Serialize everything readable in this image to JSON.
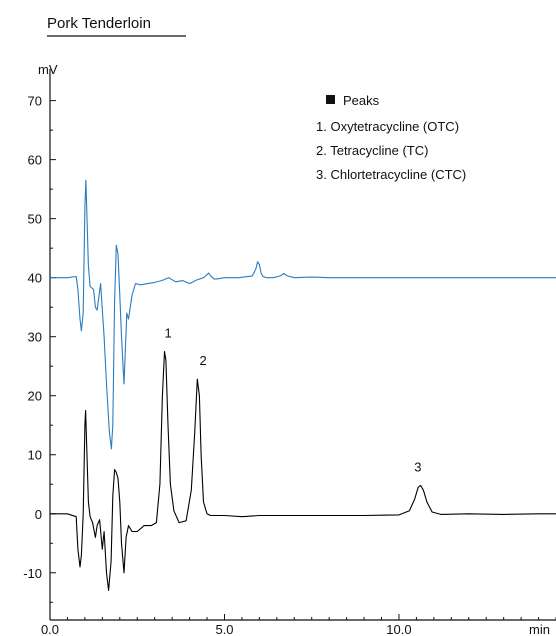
{
  "chart_data": {
    "type": "line",
    "title": "Pork Tenderloin",
    "ylabel": "mV",
    "xlabel": "min",
    "xlim": [
      0,
      14.5
    ],
    "ylim": [
      -18,
      74
    ],
    "x_ticks": [
      0,
      5,
      10
    ],
    "x_tick_labels": [
      "0.0",
      "5.0",
      "10.0"
    ],
    "y_ticks": [
      -10,
      0,
      10,
      20,
      30,
      40,
      50,
      60,
      70
    ],
    "y_tick_labels": [
      "-10",
      "0",
      "10",
      "20",
      "30",
      "40",
      "50",
      "60",
      "70"
    ],
    "legend": {
      "title": "Peaks",
      "placement": "top-right",
      "entries": [
        "1. Oxytetracycline (OTC)",
        "2. Tetracycline (TC)",
        "3. Chlortetracycline (CTC)"
      ]
    },
    "peak_labels": [
      {
        "text": "1",
        "x": 3.3,
        "y": 27.5
      },
      {
        "text": "2",
        "x": 4.3,
        "y": 22.8
      },
      {
        "text": "3",
        "x": 10.6,
        "y": 4.8
      }
    ],
    "colors": {
      "sample": "#000000",
      "spiked": "#2b7bbf"
    },
    "series": [
      {
        "color": "#2b7bbf",
        "x": [
          0,
          0.5,
          0.75,
          0.8,
          0.86,
          0.9,
          0.95,
          1.0,
          1.03,
          1.06,
          1.1,
          1.15,
          1.25,
          1.3,
          1.35,
          1.45,
          1.55,
          1.62,
          1.7,
          1.76,
          1.8,
          1.85,
          1.9,
          1.95,
          2.0,
          2.05,
          2.12,
          2.2,
          2.25,
          2.35,
          2.45,
          2.6,
          2.8,
          3.0,
          3.2,
          3.4,
          3.6,
          3.8,
          4.0,
          4.2,
          4.4,
          4.5,
          4.55,
          4.6,
          4.7,
          4.8,
          5.0,
          5.4,
          5.8,
          5.9,
          5.95,
          6.0,
          6.05,
          6.1,
          6.2,
          6.4,
          6.6,
          6.7,
          6.8,
          7.0,
          7.5,
          8.0,
          9.0,
          10.0,
          11.0,
          12.0,
          13.0,
          14.0,
          14.5
        ],
        "y": [
          40,
          40,
          40.2,
          38,
          33,
          31,
          34,
          52,
          56.5,
          50,
          42,
          38.5,
          38,
          35,
          34.5,
          39,
          30,
          22,
          14,
          11,
          15,
          36,
          45.5,
          44,
          37,
          30,
          22,
          34,
          33,
          37,
          39,
          38.8,
          39,
          39.2,
          39.5,
          40,
          39.3,
          39.5,
          39,
          39.6,
          40,
          40.5,
          40.8,
          40.3,
          39.8,
          39.8,
          40,
          40,
          40.3,
          41.5,
          42.7,
          42.2,
          40.8,
          40.2,
          40,
          40,
          40.3,
          40.7,
          40.3,
          40,
          40.1,
          40,
          40,
          40,
          40,
          40,
          40,
          40,
          40
        ]
      },
      {
        "color": "#000000",
        "x": [
          0,
          0.5,
          0.75,
          0.8,
          0.86,
          0.9,
          0.95,
          1.0,
          1.02,
          1.05,
          1.1,
          1.15,
          1.22,
          1.3,
          1.35,
          1.42,
          1.5,
          1.55,
          1.62,
          1.68,
          1.75,
          1.8,
          1.85,
          1.9,
          1.95,
          2.0,
          2.05,
          2.12,
          2.18,
          2.25,
          2.35,
          2.5,
          2.7,
          2.9,
          3.05,
          3.15,
          3.22,
          3.28,
          3.32,
          3.38,
          3.45,
          3.55,
          3.7,
          3.9,
          4.05,
          4.15,
          4.22,
          4.28,
          4.33,
          4.4,
          4.5,
          4.6,
          4.8,
          5.0,
          5.5,
          6.0,
          7.0,
          8.0,
          9.0,
          10.0,
          10.3,
          10.45,
          10.55,
          10.62,
          10.7,
          10.8,
          10.95,
          11.2,
          12.0,
          13.0,
          14.0,
          14.5
        ],
        "y": [
          0,
          0,
          -0.5,
          -6,
          -9,
          -7,
          0,
          15,
          17.5,
          12,
          2,
          -0.5,
          -1.5,
          -4,
          -2,
          -1,
          -6,
          -3,
          -10,
          -13,
          -8,
          3,
          7.5,
          7,
          6,
          2,
          -5,
          -10,
          -4,
          -2,
          -3,
          -3,
          -2,
          -2,
          -1.5,
          5,
          20,
          27.5,
          26,
          15,
          5,
          0.5,
          -1.5,
          -1.2,
          4,
          14,
          22.8,
          20,
          10,
          2,
          0,
          -0.3,
          -0.3,
          -0.3,
          -0.5,
          -0.3,
          -0.3,
          -0.3,
          -0.3,
          -0.2,
          0.5,
          2.5,
          4.5,
          4.8,
          4,
          2,
          0.3,
          -0.1,
          0,
          -0.1,
          0,
          0
        ]
      }
    ]
  }
}
